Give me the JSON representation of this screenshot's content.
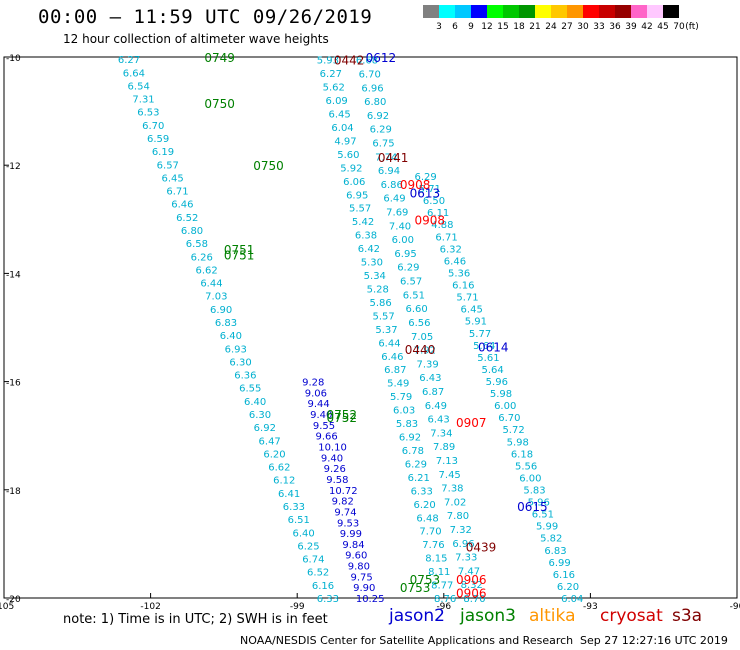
{
  "header": {
    "title": "00:00 – 11:59 UTC 09/26/2019",
    "subtitle": "12 hour collection of altimeter wave heights"
  },
  "colorbar": {
    "labels": [
      "3",
      "6",
      "9",
      "12",
      "15",
      "18",
      "21",
      "24",
      "27",
      "30",
      "33",
      "36",
      "39",
      "42",
      "45",
      "70"
    ],
    "unit": "(ft)",
    "colors": [
      "#808080",
      "#00ffff",
      "#00c8ff",
      "#0000ff",
      "#00ff00",
      "#00c800",
      "#009600",
      "#ffff00",
      "#ffc800",
      "#ff9600",
      "#ff0000",
      "#c80000",
      "#960000",
      "#ff64c8",
      "#ffc8ff",
      "#000000"
    ]
  },
  "axes": {
    "lon_ticks": [
      -105,
      -102,
      -99,
      -96,
      -93,
      -90
    ],
    "lon_tick_labels": [
      "-105",
      "-102",
      "-99",
      "-96",
      "-93",
      "-90"
    ],
    "lat_ticks": [
      -10,
      -12,
      -14,
      -16,
      -18,
      -20
    ],
    "lat_tick_labels": [
      "-10",
      "-12",
      "-14",
      "-16",
      "-18",
      "-20"
    ],
    "lon_range": [
      -105,
      -90
    ],
    "lat_range": [
      -20,
      -10
    ]
  },
  "tracks": [
    {
      "name": "jason3-track-0749",
      "color": "#00b0d0",
      "lon0": -102.67,
      "lat0": -10.04,
      "lon1": -98.6,
      "lat1": -20.0,
      "values": [
        "6.27",
        "6.64",
        "6.54",
        "7.31",
        "6.53",
        "6.70",
        "6.59",
        "6.19",
        "6.57",
        "6.45",
        "6.71",
        "6.46",
        "6.52",
        "6.80",
        "6.58",
        "6.26",
        "6.62",
        "6.44",
        "7.03",
        "6.90",
        "6.83",
        "6.40",
        "6.93",
        "6.30",
        "6.36",
        "6.55",
        "6.40",
        "6.30",
        "6.92",
        "6.47",
        "6.20",
        "6.62",
        "6.12",
        "6.41",
        "6.33",
        "6.51",
        "6.40",
        "6.25",
        "6.74",
        "6.52",
        "6.16",
        "6.33"
      ]
    },
    {
      "name": "jason2-track-0750",
      "color": "#0000d0",
      "lon0": -98.9,
      "lat0": -16.0,
      "lon1": -97.8,
      "lat1": -20.0,
      "values": [
        "9.28",
        "9.06",
        "9.44",
        "9.40",
        "9.55",
        "9.66",
        "10.10",
        "9.40",
        "9.26",
        "9.58",
        "10.72",
        "9.82",
        "9.74",
        "9.53",
        "9.99",
        "9.84",
        "9.60",
        "9.80",
        "9.75",
        "9.90",
        "10.25"
      ]
    },
    {
      "name": "cyan-track-a",
      "color": "#00b0d0",
      "lon0": -98.6,
      "lat0": -10.05,
      "lon1": -96.2,
      "lat1": -20.0,
      "values": [
        "5.93",
        "6.27",
        "5.62",
        "6.09",
        "6.45",
        "6.04",
        "4.97",
        "5.60",
        "5.92",
        "6.06",
        "6.95",
        "5.57",
        "5.42",
        "6.38",
        "6.42",
        "5.30",
        "5.34",
        "5.28",
        "5.86",
        "5.57",
        "5.37",
        "6.44",
        "6.46",
        "6.87",
        "5.49",
        "5.79",
        "6.03",
        "5.83",
        "6.92",
        "6.78",
        "6.29",
        "6.21",
        "6.33",
        "6.20",
        "6.48",
        "7.70",
        "7.76",
        "8.15",
        "8.11",
        "8.77",
        "8.76"
      ]
    },
    {
      "name": "cyan-track-b",
      "color": "#00b0d0",
      "lon0": -97.8,
      "lat0": -10.05,
      "lon1": -95.6,
      "lat1": -20.0,
      "values": [
        "6.68",
        "6.70",
        "6.96",
        "6.80",
        "6.92",
        "6.29",
        "6.75",
        "7.74",
        "6.94",
        "6.86",
        "6.49",
        "7.69",
        "7.40",
        "6.00",
        "6.95",
        "6.29",
        "6.57",
        "6.51",
        "6.60",
        "6.56",
        "7.05",
        "7.92",
        "7.39",
        "6.43",
        "6.87",
        "6.49",
        "6.43",
        "7.34",
        "7.89",
        "7.13",
        "7.45",
        "7.38",
        "7.02",
        "7.80",
        "7.32",
        "6.96",
        "7.33",
        "7.47",
        "8.32",
        "8.70"
      ]
    },
    {
      "name": "cyan-track-c",
      "color": "#00b0d0",
      "lon0": -96.6,
      "lat0": -12.2,
      "lon1": -93.6,
      "lat1": -20.0,
      "values": [
        "6.29",
        "5.71",
        "6.50",
        "6.11",
        "4.88",
        "6.71",
        "6.32",
        "6.46",
        "5.36",
        "6.16",
        "5.71",
        "6.45",
        "5.91",
        "5.77",
        "5.64",
        "5.61",
        "5.64",
        "5.96",
        "5.98",
        "6.00",
        "6.70",
        "5.72",
        "5.98",
        "6.18",
        "5.56",
        "6.00",
        "5.83",
        "5.96",
        "6.51",
        "5.99",
        "5.82",
        "6.83",
        "6.99",
        "6.16",
        "6.20",
        "6.04"
      ]
    }
  ],
  "pass_labels": [
    {
      "text": "0749",
      "color": "#008000",
      "lon": -100.9,
      "lat": -10.0
    },
    {
      "text": "0750",
      "color": "#008000",
      "lon": -100.9,
      "lat": -10.85
    },
    {
      "text": "0750",
      "color": "#008000",
      "lon": -99.9,
      "lat": -12.0
    },
    {
      "text": "0751",
      "color": "#008000",
      "lon": -100.5,
      "lat": -13.55
    },
    {
      "text": "0751",
      "color": "#008000",
      "lon": -100.5,
      "lat": -13.65
    },
    {
      "text": "0752",
      "color": "#008000",
      "lon": -98.4,
      "lat": -16.6
    },
    {
      "text": "0752",
      "color": "#008000",
      "lon": -98.4,
      "lat": -16.65
    },
    {
      "text": "0753",
      "color": "#008000",
      "lon": -96.7,
      "lat": -19.65
    },
    {
      "text": "0753",
      "color": "#008000",
      "lon": -96.9,
      "lat": -19.8
    },
    {
      "text": "0442",
      "color": "#800000",
      "lon": -98.25,
      "lat": -10.05
    },
    {
      "text": "0612",
      "color": "#0000d0",
      "lon": -97.6,
      "lat": -10.0
    },
    {
      "text": "0441",
      "color": "#800000",
      "lon": -97.35,
      "lat": -11.85
    },
    {
      "text": "0908",
      "color": "#ff0000",
      "lon": -96.9,
      "lat": -12.35
    },
    {
      "text": "0613",
      "color": "#0000d0",
      "lon": -96.7,
      "lat": -12.5
    },
    {
      "text": "0908",
      "color": "#ff0000",
      "lon": -96.6,
      "lat": -13.0
    },
    {
      "text": "0440",
      "color": "#800000",
      "lon": -96.8,
      "lat": -15.4
    },
    {
      "text": "0614",
      "color": "#0000d0",
      "lon": -95.3,
      "lat": -15.35
    },
    {
      "text": "0907",
      "color": "#ff0000",
      "lon": -95.75,
      "lat": -16.75
    },
    {
      "text": "0615",
      "color": "#0000d0",
      "lon": -94.5,
      "lat": -18.3
    },
    {
      "text": "0439",
      "color": "#800000",
      "lon": -95.55,
      "lat": -19.05
    },
    {
      "text": "0906",
      "color": "#ff0000",
      "lon": -95.75,
      "lat": -19.65
    },
    {
      "text": "0906",
      "color": "#ff0000",
      "lon": -95.75,
      "lat": -19.9
    }
  ],
  "footer": {
    "note": "note:  1) Time is in UTC; 2) SWH is in feet",
    "satellites": [
      {
        "name": "jason2",
        "color": "#0000d0"
      },
      {
        "name": "jason3",
        "color": "#008000"
      },
      {
        "name": "altika",
        "color": "#ff9600"
      },
      {
        "name": "cryosat",
        "color": "#d00000"
      },
      {
        "name": "s3a",
        "color": "#800000"
      }
    ],
    "credit": "NOAA/NESDIS Center for Satellite Applications and Research",
    "timestamp": "Sep 27 12:27:16 UTC 2019"
  }
}
